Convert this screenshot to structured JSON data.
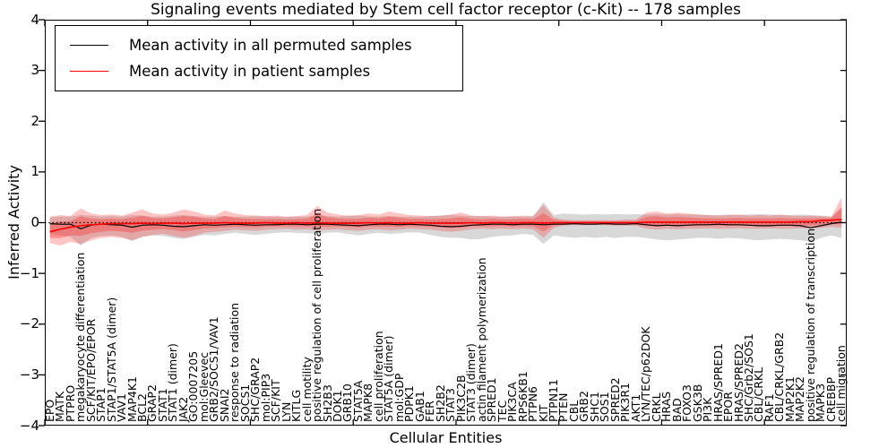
{
  "title": "Signaling events mediated by Stem cell factor receptor (c-Kit) -- 178 samples",
  "legend": {
    "entries": [
      {
        "label": "Mean activity in all permuted samples",
        "color": "#000000"
      },
      {
        "label": "Mean activity in patient samples",
        "color": "#ff0000"
      }
    ]
  },
  "axes": {
    "ylabel": "Inferred Activity",
    "xlabel": "Cellular Entities",
    "ytick_labels": [
      "4",
      "3",
      "2",
      "1",
      "0",
      "−1",
      "−2",
      "−3",
      "−4"
    ],
    "ytick_values": [
      4,
      3,
      2,
      1,
      0,
      -1,
      -2,
      -3,
      -4
    ],
    "xtick_values": [
      0,
      10,
      20,
      30,
      40,
      50,
      60,
      70
    ],
    "ylim": [
      -4,
      4
    ],
    "xlim": [
      0,
      78
    ]
  },
  "chart_data": {
    "type": "line",
    "title": "Signaling events mediated by Stem cell factor receptor (c-Kit) -- 178 samples",
    "xlabel": "Cellular Entities",
    "ylabel": "Inferred Activity",
    "ylim": [
      -4,
      4
    ],
    "grid": false,
    "legend_position": "upper left",
    "zero_reference_line": {
      "style": "dotted",
      "color": "#000000",
      "y": 0
    },
    "categories": [
      "EPO",
      "MATK",
      "PTPRO",
      "megakaryocyte differentiation",
      "SCF/KIT/EPO/EPOR",
      "STAP1",
      "STAP1/STAT5A (dimer)",
      "VAV1",
      "MAP4K1",
      "BCL2",
      "GRAP2",
      "STAT1",
      "STAT1 (dimer)",
      "JAK2",
      "GO:0007205",
      "mol:Gleevec",
      "GRB2/SOCS1/VAV1",
      "SNAI2",
      "response to radiation",
      "SOCS1",
      "SHC/GRAP2",
      "mol:PIP3",
      "SCF/KIT",
      "LYN",
      "KITLG",
      "cell motility",
      "positive regulation of cell proliferation",
      "SH2B3",
      "DOK1",
      "GRB10",
      "STAT5A",
      "MAPK8",
      "cell proliferation",
      "STAT5A (dimer)",
      "mol:GDP",
      "PDPK1",
      "GAB1",
      "FER",
      "SH2B2",
      "STAT3",
      "PIK3C2B",
      "STAT3 (dimer)",
      "actin filament polymerization",
      "SPRED1",
      "TEC",
      "PIK3CA",
      "RPS6KB1",
      "PTPN6",
      "KIT",
      "PTPN11",
      "PTEN",
      "CBL",
      "GRB2",
      "SHC1",
      "SOS1",
      "SPRED2",
      "PIK3R1",
      "AKT1",
      "LYN/TEC/p62DOK",
      "CRKL",
      "HRAS",
      "BAD",
      "FOXO3",
      "GSK3B",
      "PI3K",
      "HRAS/SPRED1",
      "EPOR",
      "HRAS/SPRED2",
      "SHC/Grb2/SOS1",
      "CBL/CRKL",
      "RAF1",
      "CBL/CRKL/GRB2",
      "MAP2K1",
      "MAP2K2",
      "positive regulation of transcription",
      "MAPK3",
      "CREBBP",
      "cell migration"
    ],
    "series": [
      {
        "name": "Mean activity in all permuted samples",
        "color": "#000000",
        "values": [
          -0.02,
          -0.03,
          -0.03,
          -0.12,
          -0.05,
          -0.03,
          -0.04,
          -0.05,
          -0.09,
          -0.05,
          -0.04,
          -0.05,
          -0.07,
          -0.08,
          -0.06,
          -0.04,
          -0.05,
          -0.04,
          -0.03,
          -0.04,
          -0.05,
          -0.04,
          -0.04,
          -0.03,
          -0.03,
          -0.04,
          -0.03,
          -0.03,
          -0.04,
          -0.05,
          -0.06,
          -0.04,
          -0.03,
          -0.03,
          -0.04,
          -0.03,
          -0.04,
          -0.05,
          -0.07,
          -0.08,
          -0.07,
          -0.05,
          -0.04,
          -0.03,
          -0.03,
          -0.04,
          -0.03,
          -0.03,
          -0.04,
          -0.03,
          -0.03,
          -0.02,
          -0.03,
          -0.03,
          -0.02,
          -0.03,
          -0.03,
          -0.02,
          -0.04,
          -0.06,
          -0.05,
          -0.06,
          -0.05,
          -0.04,
          -0.04,
          -0.03,
          -0.04,
          -0.04,
          -0.05,
          -0.06,
          -0.06,
          -0.05,
          -0.05,
          -0.06,
          -0.1,
          -0.06,
          -0.02,
          0.01
        ]
      },
      {
        "name": "Mean activity in patient samples",
        "color": "#ff0000",
        "values": [
          -0.18,
          -0.13,
          -0.09,
          -0.06,
          -0.04,
          -0.03,
          -0.02,
          -0.02,
          -0.02,
          -0.01,
          -0.02,
          -0.01,
          -0.01,
          -0.02,
          -0.01,
          -0.01,
          -0.01,
          0.0,
          -0.01,
          -0.01,
          -0.01,
          0.0,
          -0.01,
          -0.01,
          0.0,
          -0.01,
          0.0,
          -0.01,
          -0.01,
          -0.01,
          -0.01,
          0.0,
          -0.01,
          0.0,
          -0.01,
          -0.01,
          0.0,
          -0.01,
          -0.01,
          -0.01,
          -0.01,
          0.0,
          -0.01,
          0.0,
          0.0,
          -0.01,
          0.0,
          0.0,
          -0.01,
          0.0,
          0.0,
          0.0,
          0.0,
          0.0,
          0.0,
          0.0,
          0.0,
          0.0,
          0.01,
          0.01,
          0.01,
          0.01,
          0.01,
          0.01,
          0.01,
          0.01,
          0.01,
          0.01,
          0.01,
          0.01,
          0.01,
          0.01,
          0.01,
          0.02,
          0.02,
          0.04,
          0.05,
          0.06
        ]
      }
    ],
    "bands": [
      {
        "name": "permuted-samples-range",
        "color": "#999999",
        "opacity": 0.38,
        "upper": [
          0.1,
          0.12,
          0.12,
          0.15,
          0.14,
          0.12,
          0.13,
          0.12,
          0.15,
          0.14,
          0.12,
          0.12,
          0.14,
          0.15,
          0.13,
          0.12,
          0.12,
          0.13,
          0.12,
          0.12,
          0.13,
          0.12,
          0.12,
          0.11,
          0.12,
          0.12,
          0.14,
          0.13,
          0.12,
          0.13,
          0.14,
          0.12,
          0.12,
          0.13,
          0.12,
          0.12,
          0.12,
          0.13,
          0.14,
          0.15,
          0.14,
          0.13,
          0.13,
          0.12,
          0.12,
          0.12,
          0.12,
          0.12,
          0.4,
          0.15,
          0.18,
          0.17,
          0.16,
          0.17,
          0.16,
          0.17,
          0.16,
          0.17,
          0.16,
          0.17,
          0.16,
          0.17,
          0.16,
          0.16,
          0.15,
          0.15,
          0.16,
          0.15,
          0.16,
          0.17,
          0.16,
          0.15,
          0.15,
          0.16,
          0.15,
          0.14,
          0.12,
          0.3
        ],
        "lower": [
          -0.22,
          -0.25,
          -0.28,
          -0.45,
          -0.3,
          -0.26,
          -0.25,
          -0.28,
          -0.36,
          -0.28,
          -0.25,
          -0.26,
          -0.3,
          -0.32,
          -0.28,
          -0.24,
          -0.25,
          -0.22,
          -0.2,
          -0.22,
          -0.24,
          -0.22,
          -0.2,
          -0.19,
          -0.2,
          -0.21,
          -0.22,
          -0.2,
          -0.19,
          -0.22,
          -0.25,
          -0.22,
          -0.2,
          -0.22,
          -0.21,
          -0.19,
          -0.2,
          -0.24,
          -0.28,
          -0.3,
          -0.3,
          -0.33,
          -0.32,
          -0.28,
          -0.26,
          -0.25,
          -0.22,
          -0.24,
          -0.42,
          -0.25,
          -0.28,
          -0.3,
          -0.28,
          -0.3,
          -0.28,
          -0.3,
          -0.28,
          -0.28,
          -0.3,
          -0.33,
          -0.35,
          -0.33,
          -0.32,
          -0.3,
          -0.3,
          -0.32,
          -0.3,
          -0.31,
          -0.33,
          -0.35,
          -0.33,
          -0.32,
          -0.33,
          -0.35,
          -0.38,
          -0.3,
          -0.25,
          -0.3
        ]
      },
      {
        "name": "patient-samples-range",
        "color": "#ff2a2a",
        "opacity": 0.27,
        "upper": [
          0.12,
          0.15,
          0.13,
          0.28,
          0.18,
          0.15,
          0.16,
          0.14,
          0.2,
          0.26,
          0.18,
          0.16,
          0.2,
          0.26,
          0.22,
          0.16,
          0.14,
          0.24,
          0.18,
          0.15,
          0.14,
          0.13,
          0.14,
          0.12,
          0.13,
          0.15,
          0.33,
          0.2,
          0.16,
          0.14,
          0.15,
          0.18,
          0.16,
          0.22,
          0.18,
          0.15,
          0.14,
          0.13,
          0.14,
          0.16,
          0.2,
          0.14,
          0.13,
          0.14,
          0.12,
          0.13,
          0.14,
          0.13,
          0.35,
          0.1,
          0.06,
          0.05,
          0.05,
          0.05,
          0.05,
          0.05,
          0.06,
          0.06,
          0.2,
          0.22,
          0.18,
          0.2,
          0.18,
          0.16,
          0.15,
          0.14,
          0.15,
          0.16,
          0.14,
          0.15,
          0.14,
          0.16,
          0.14,
          0.13,
          0.14,
          0.13,
          0.12,
          0.5
        ],
        "lower": [
          -0.4,
          -0.45,
          -0.38,
          -0.42,
          -0.35,
          -0.3,
          -0.28,
          -0.3,
          -0.35,
          -0.28,
          -0.24,
          -0.22,
          -0.26,
          -0.3,
          -0.26,
          -0.2,
          -0.18,
          -0.16,
          -0.14,
          -0.15,
          -0.16,
          -0.14,
          -0.13,
          -0.12,
          -0.14,
          -0.13,
          -0.15,
          -0.14,
          -0.13,
          -0.15,
          -0.16,
          -0.14,
          -0.13,
          -0.15,
          -0.14,
          -0.12,
          -0.13,
          -0.14,
          -0.16,
          -0.18,
          -0.16,
          -0.13,
          -0.12,
          -0.13,
          -0.12,
          -0.13,
          -0.12,
          -0.13,
          -0.3,
          -0.1,
          -0.06,
          -0.05,
          -0.05,
          -0.05,
          -0.05,
          -0.06,
          -0.06,
          -0.06,
          -0.12,
          -0.14,
          -0.12,
          -0.13,
          -0.12,
          -0.12,
          -0.11,
          -0.12,
          -0.12,
          -0.11,
          -0.12,
          -0.12,
          -0.11,
          -0.12,
          -0.12,
          -0.11,
          -0.12,
          -0.1,
          -0.08,
          -0.1
        ]
      }
    ]
  }
}
